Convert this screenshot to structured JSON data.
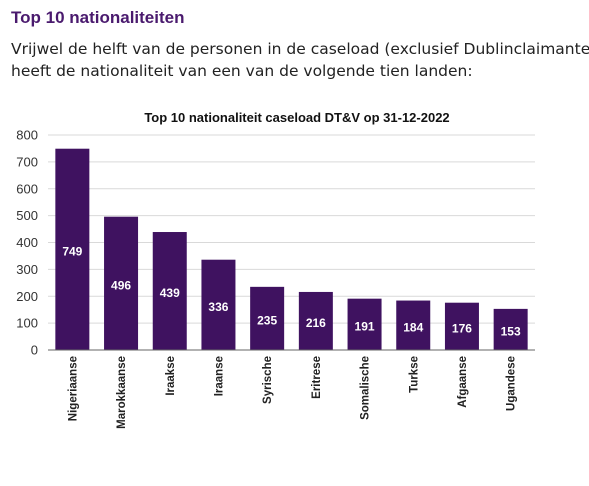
{
  "header": {
    "title": "Top 10 nationaliteiten",
    "intro_line_1": "Vrijwel de helft van de personen in de caseload (exclusief Dublinclaimanten)",
    "intro_line_2": "heeft de nationaliteit van een van de volgende tien landen:"
  },
  "chart_data": {
    "type": "bar",
    "title": "Top 10 nationaliteit caseload DT&V op 31-12-2022",
    "xlabel": "",
    "ylabel": "",
    "categories": [
      "Nigeriaanse",
      "Marokkaanse",
      "Iraakse",
      "Iraanse",
      "Syrische",
      "Eritrese",
      "Somalische",
      "Turkse",
      "Afgaanse",
      "Ugandese"
    ],
    "values": [
      749,
      496,
      439,
      336,
      235,
      216,
      191,
      184,
      176,
      153
    ],
    "ylim": [
      0,
      800
    ],
    "yticks": [
      0,
      100,
      200,
      300,
      400,
      500,
      600,
      700,
      800
    ],
    "grid": true,
    "legend": "none",
    "bar_color": "#3f1260",
    "label_color": "#ffffff"
  }
}
